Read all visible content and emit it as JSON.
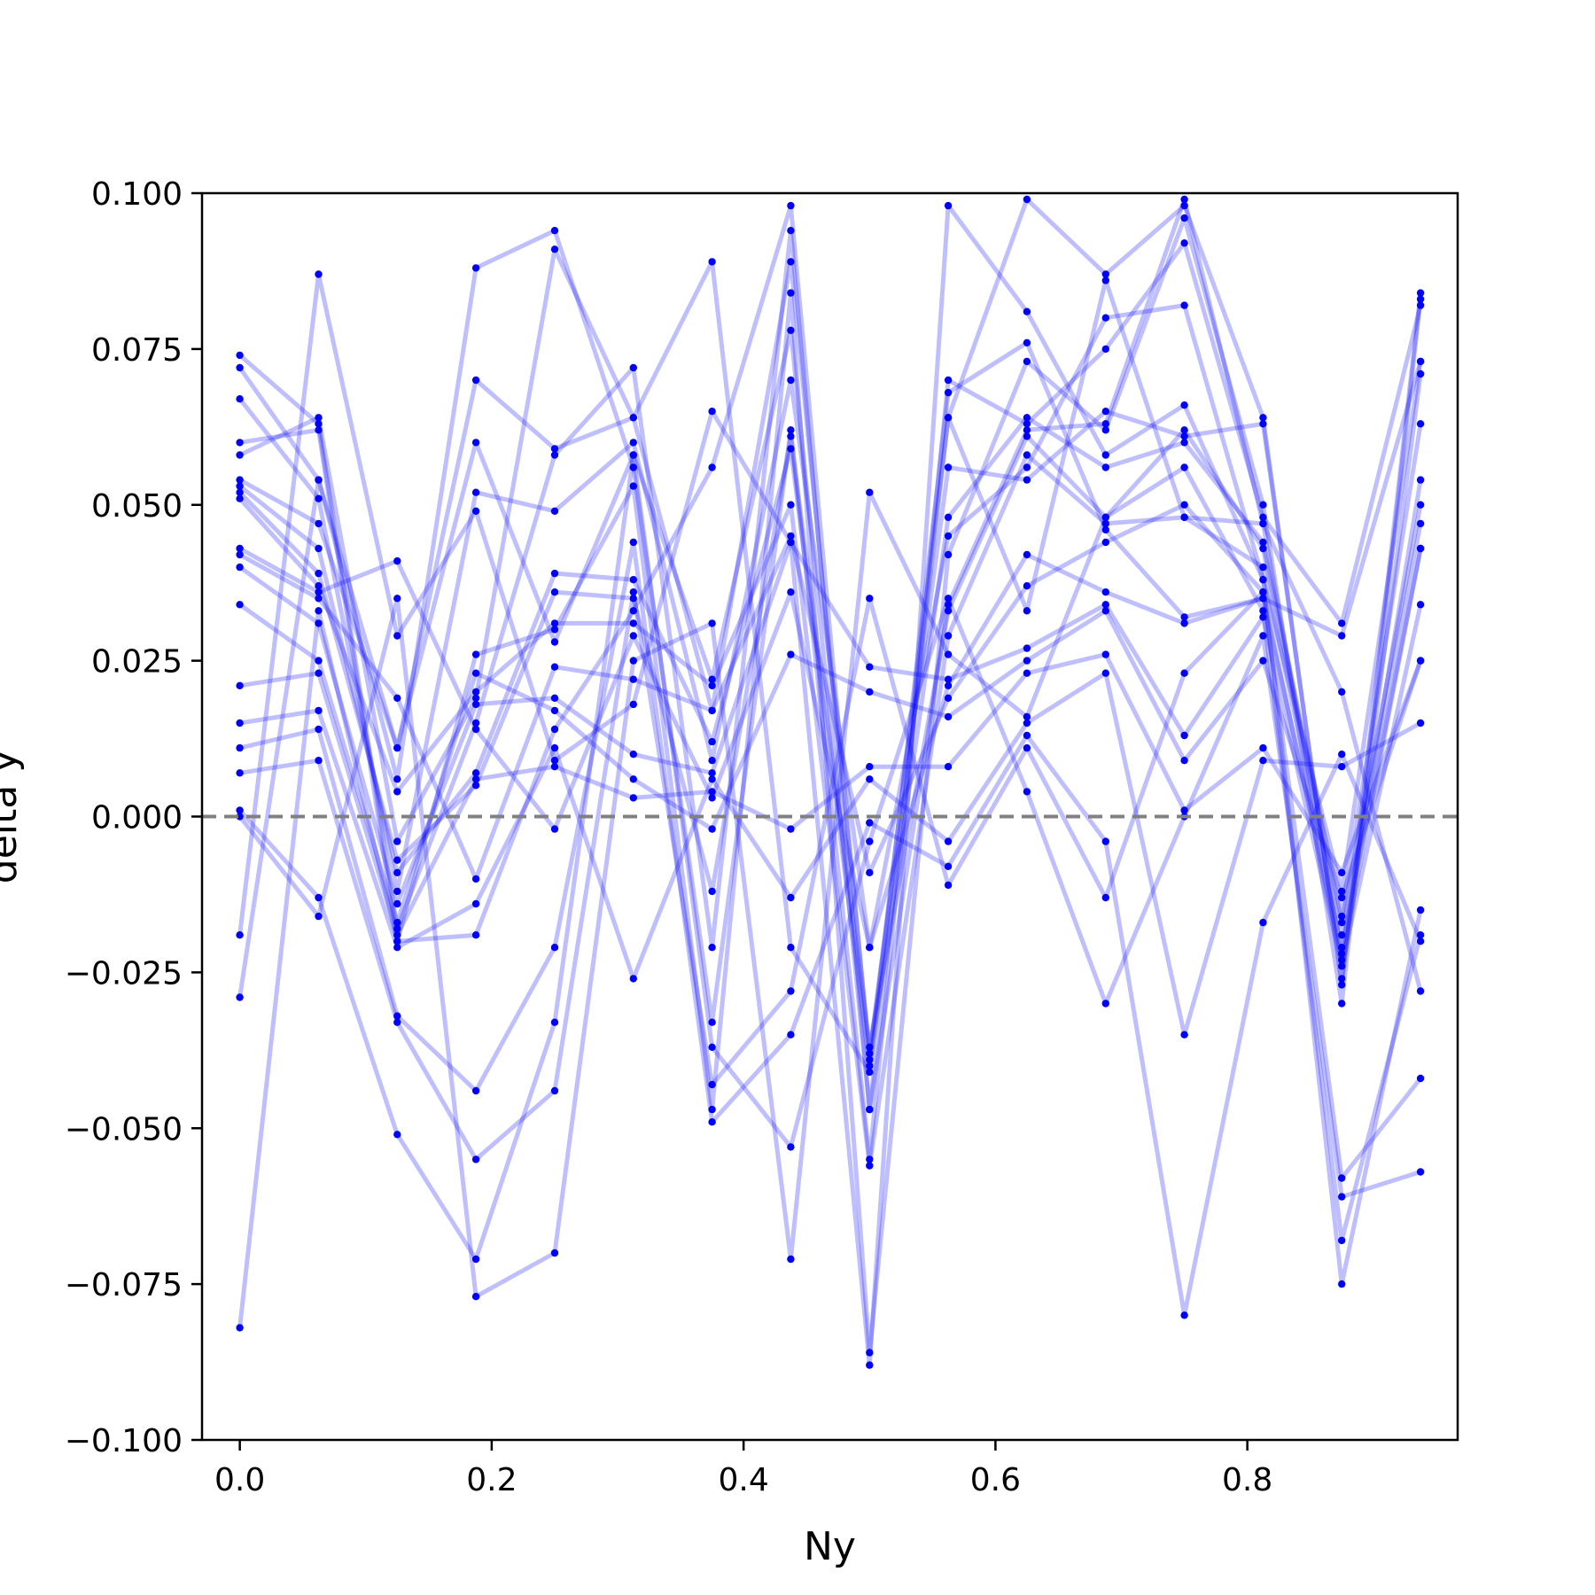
{
  "chart_data": {
    "type": "line",
    "title": "",
    "xlabel": "Ny",
    "ylabel": "delta y",
    "xlim": [
      -0.03,
      0.967
    ],
    "ylim": [
      -0.1,
      0.1
    ],
    "x": [
      0.0,
      0.0625,
      0.125,
      0.1875,
      0.25,
      0.3125,
      0.375,
      0.4375,
      0.5,
      0.5625,
      0.625,
      0.6875,
      0.75,
      0.8125,
      0.875,
      0.9375
    ],
    "x_ticks": [
      0.0,
      0.2,
      0.4,
      0.6,
      0.8
    ],
    "x_tick_labels": [
      "0.0",
      "0.2",
      "0.4",
      "0.6",
      "0.8"
    ],
    "y_ticks": [
      -0.1,
      -0.075,
      -0.05,
      -0.025,
      0.0,
      0.025,
      0.05,
      0.075,
      0.1
    ],
    "y_tick_labels": [
      "−0.100",
      "−0.075",
      "−0.050",
      "−0.025",
      "0.000",
      "0.025",
      "0.050",
      "0.075",
      "0.100"
    ],
    "reference_line": {
      "y": 0.0,
      "style": "dashed",
      "color": "#808080"
    },
    "line_color": "#0000ff",
    "marker_color": "#0000ff",
    "line_alpha": 0.25,
    "grid": false,
    "legend": "none",
    "series": [
      {
        "values": [
          0.074,
          0.063,
          -0.018,
          0.015,
          0.058,
          0.072,
          -0.021,
          0.094,
          -0.047,
          0.064,
          0.099,
          0.087,
          0.098,
          0.064,
          -0.027,
          0.084
        ]
      },
      {
        "values": [
          0.072,
          0.054,
          0.006,
          0.088,
          0.094,
          0.056,
          -0.033,
          0.062,
          -0.055,
          0.07,
          0.063,
          0.075,
          0.092,
          0.048,
          0.031,
          0.082
        ]
      },
      {
        "values": [
          0.067,
          0.051,
          -0.012,
          0.052,
          0.049,
          0.06,
          0.009,
          0.07,
          -0.021,
          0.045,
          0.056,
          0.08,
          0.082,
          0.038,
          -0.012,
          0.073
        ]
      },
      {
        "values": [
          0.06,
          0.062,
          -0.02,
          0.026,
          0.03,
          0.053,
          -0.047,
          0.084,
          -0.086,
          0.042,
          0.073,
          0.062,
          0.096,
          0.05,
          -0.03,
          0.083
        ]
      },
      {
        "values": [
          0.058,
          0.064,
          -0.004,
          0.019,
          0.091,
          0.064,
          0.017,
          0.089,
          -0.038,
          0.056,
          0.054,
          0.065,
          0.061,
          0.063,
          -0.026,
          0.071
        ]
      },
      {
        "values": [
          0.054,
          0.047,
          0.011,
          0.06,
          0.028,
          0.058,
          0.022,
          0.078,
          -0.047,
          0.034,
          0.062,
          0.063,
          0.099,
          0.047,
          -0.022,
          0.054
        ]
      },
      {
        "values": [
          0.053,
          0.043,
          -0.009,
          0.007,
          0.039,
          0.038,
          0.012,
          0.059,
          -0.04,
          0.048,
          0.064,
          0.056,
          0.06,
          0.044,
          -0.016,
          0.063
        ]
      },
      {
        "values": [
          0.052,
          0.039,
          -0.007,
          0.005,
          0.036,
          0.035,
          -0.012,
          0.061,
          -0.037,
          0.033,
          0.061,
          0.048,
          0.062,
          0.043,
          -0.017,
          0.05
        ]
      },
      {
        "values": [
          0.051,
          0.037,
          0.004,
          0.02,
          0.031,
          0.031,
          0.021,
          0.05,
          -0.056,
          0.029,
          0.058,
          0.047,
          0.048,
          0.04,
          -0.019,
          0.047
        ]
      },
      {
        "values": [
          0.043,
          0.036,
          0.041,
          0.014,
          -0.002,
          0.029,
          0.003,
          0.036,
          -0.021,
          0.021,
          0.042,
          0.036,
          0.031,
          0.035,
          -0.021,
          0.043
        ]
      },
      {
        "values": [
          0.042,
          0.035,
          0.019,
          -0.01,
          0.024,
          0.022,
          0.017,
          0.045,
          -0.009,
          0.019,
          0.037,
          0.044,
          0.05,
          0.036,
          -0.023,
          0.043
        ]
      },
      {
        "values": [
          0.04,
          0.031,
          -0.014,
          0.018,
          0.019,
          0.01,
          0.007,
          0.044,
          0.024,
          0.022,
          0.027,
          0.034,
          0.013,
          0.032,
          -0.024,
          0.034
        ]
      },
      {
        "values": [
          0.034,
          0.025,
          -0.017,
          0.023,
          0.017,
          0.006,
          -0.002,
          0.026,
          0.02,
          0.016,
          0.025,
          0.033,
          0.009,
          0.025,
          -0.013,
          0.025
        ]
      },
      {
        "values": [
          0.021,
          0.023,
          -0.019,
          0.006,
          0.008,
          0.003,
          0.004,
          -0.002,
          0.008,
          0.008,
          0.023,
          0.026,
          0.001,
          0.011,
          -0.009,
          0.025
        ]
      },
      {
        "values": [
          0.015,
          0.017,
          -0.021,
          -0.014,
          0.011,
          -0.026,
          0.006,
          -0.013,
          0.006,
          -0.004,
          0.015,
          0.023,
          -0.035,
          0.009,
          0.008,
          0.015
        ]
      },
      {
        "values": [
          0.011,
          0.014,
          -0.032,
          -0.044,
          -0.021,
          0.044,
          -0.049,
          -0.035,
          -0.001,
          -0.008,
          0.013,
          -0.004,
          -0.08,
          -0.017,
          0.01,
          -0.02
        ]
      },
      {
        "values": [
          0.007,
          0.009,
          -0.033,
          -0.055,
          -0.044,
          0.036,
          -0.043,
          -0.028,
          0.035,
          -0.011,
          0.011,
          -0.013,
          0.023,
          0.036,
          -0.058,
          -0.042
        ]
      },
      {
        "values": [
          0.001,
          -0.013,
          -0.051,
          -0.071,
          -0.033,
          0.058,
          -0.037,
          -0.053,
          -0.004,
          0.035,
          0.004,
          -0.03,
          0.0,
          0.029,
          -0.061,
          -0.057
        ]
      },
      {
        "values": [
          0.0,
          -0.016,
          0.035,
          -0.077,
          -0.07,
          0.025,
          0.031,
          -0.071,
          0.052,
          0.026,
          0.016,
          0.048,
          0.056,
          0.033,
          -0.068,
          -0.019
        ]
      },
      {
        "values": [
          -0.019,
          0.087,
          0.029,
          0.049,
          0.009,
          0.018,
          0.065,
          0.044,
          -0.088,
          0.098,
          0.081,
          0.058,
          0.066,
          0.038,
          -0.075,
          -0.015
        ]
      },
      {
        "values": [
          -0.029,
          0.054,
          0.011,
          0.07,
          0.059,
          0.064,
          0.089,
          -0.021,
          -0.041,
          0.068,
          0.076,
          0.046,
          0.032,
          0.035,
          0.029,
          0.073
        ]
      },
      {
        "values": [
          -0.082,
          0.033,
          -0.02,
          -0.019,
          0.014,
          0.033,
          0.056,
          0.098,
          -0.039,
          0.064,
          0.033,
          0.086,
          0.048,
          0.047,
          0.02,
          -0.028
        ]
      }
    ]
  }
}
